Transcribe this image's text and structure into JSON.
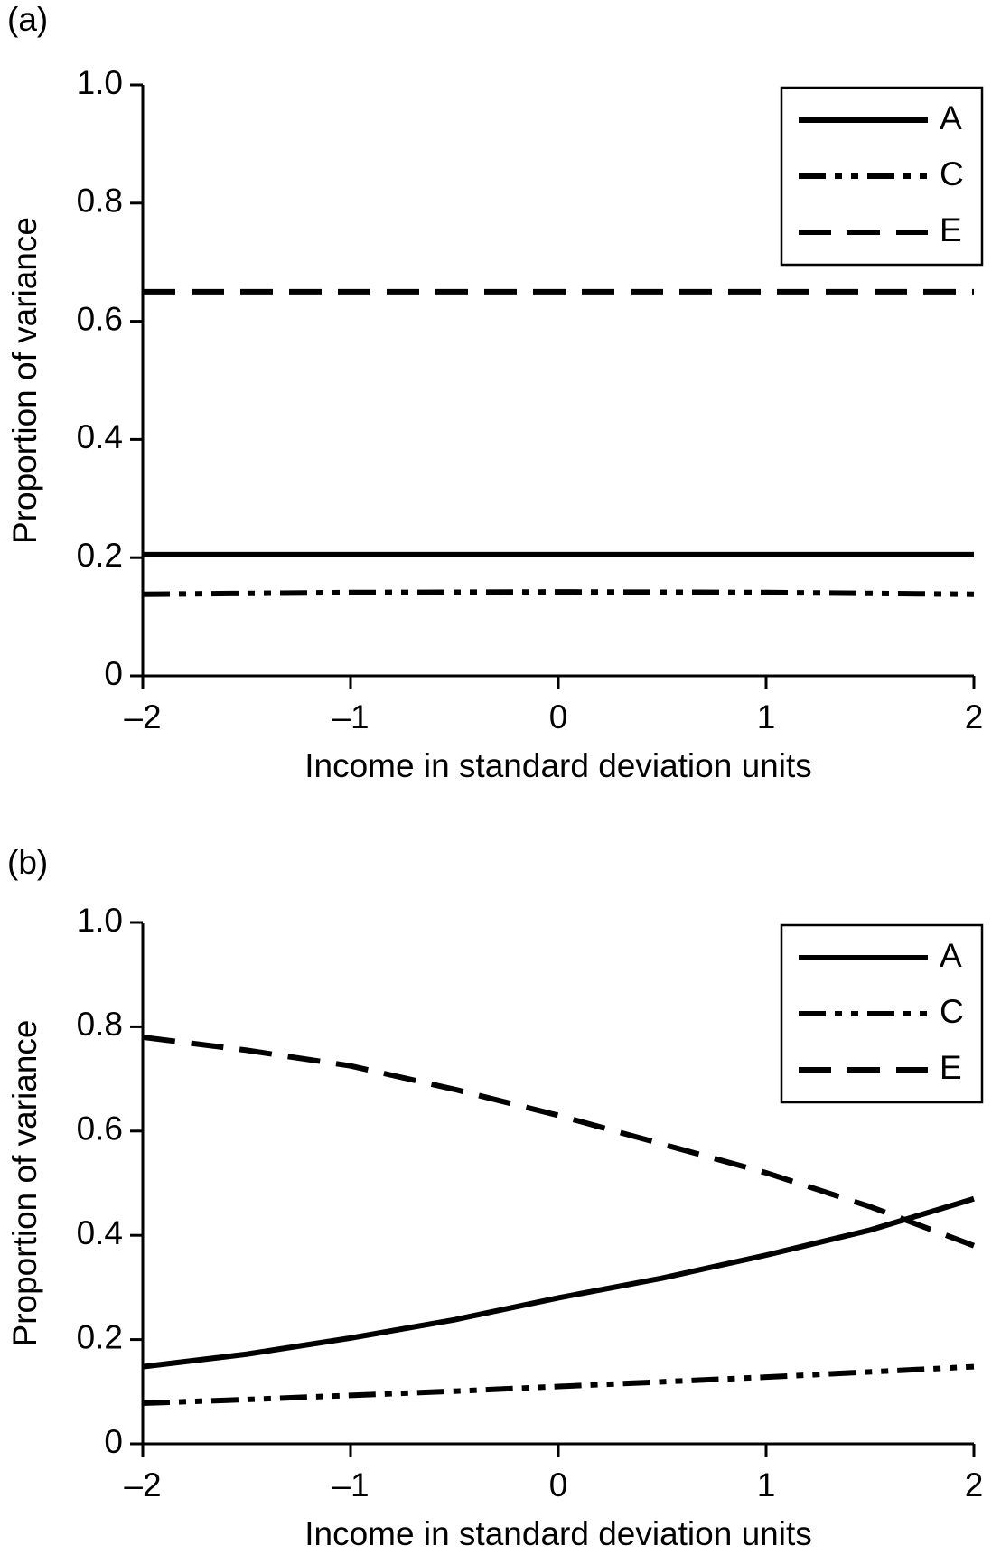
{
  "chart_data": [
    {
      "type": "line",
      "panel_label": "(a)",
      "x_label": "Income in standard deviation units",
      "y_label": "Proportion of variance",
      "x": [
        -2,
        -1,
        0,
        1,
        2
      ],
      "series": [
        {
          "name": "A",
          "color": "#000000",
          "style": "solid",
          "values": [
            0.205,
            0.205,
            0.205,
            0.205,
            0.205
          ]
        },
        {
          "name": "C",
          "color": "#000000",
          "style": "dashdotdot",
          "values": [
            0.138,
            0.141,
            0.142,
            0.141,
            0.138
          ]
        },
        {
          "name": "E",
          "color": "#000000",
          "style": "dashed",
          "values": [
            0.65,
            0.65,
            0.65,
            0.65,
            0.65
          ]
        }
      ],
      "xlim": [
        -2,
        2
      ],
      "ylim": [
        0,
        1
      ],
      "xticks": [
        {
          "value": -2,
          "label": "–2"
        },
        {
          "value": -1,
          "label": "–1"
        },
        0,
        1,
        2
      ],
      "yticks": [
        0,
        0.2,
        0.4,
        0.6,
        0.8,
        {
          "value": 1,
          "label": "1.0"
        }
      ],
      "legend": "top-right"
    },
    {
      "type": "line",
      "panel_label": "(b)",
      "x_label": "Income in standard deviation units",
      "y_label": "Proportion of variance",
      "x": [
        -2,
        -1.5,
        -1,
        -0.5,
        0,
        0.5,
        1,
        1.5,
        2
      ],
      "series": [
        {
          "name": "A",
          "color": "#000000",
          "style": "solid",
          "values": [
            0.148,
            0.172,
            0.203,
            0.238,
            0.28,
            0.318,
            0.362,
            0.41,
            0.47
          ]
        },
        {
          "name": "C",
          "color": "#000000",
          "style": "dashdotdot",
          "values": [
            0.078,
            0.085,
            0.093,
            0.101,
            0.11,
            0.119,
            0.128,
            0.138,
            0.148
          ]
        },
        {
          "name": "E",
          "color": "#000000",
          "style": "dashed",
          "values": [
            0.78,
            0.755,
            0.725,
            0.68,
            0.63,
            0.575,
            0.52,
            0.455,
            0.38
          ]
        }
      ],
      "xlim": [
        -2,
        2
      ],
      "ylim": [
        0,
        1
      ],
      "xticks": [
        {
          "value": -2,
          "label": "–2"
        },
        {
          "value": -1,
          "label": "–1"
        },
        0,
        1,
        2
      ],
      "yticks": [
        0,
        0.2,
        0.4,
        0.6,
        0.8,
        {
          "value": 1,
          "label": "1.0"
        }
      ],
      "legend": "top-right"
    }
  ]
}
